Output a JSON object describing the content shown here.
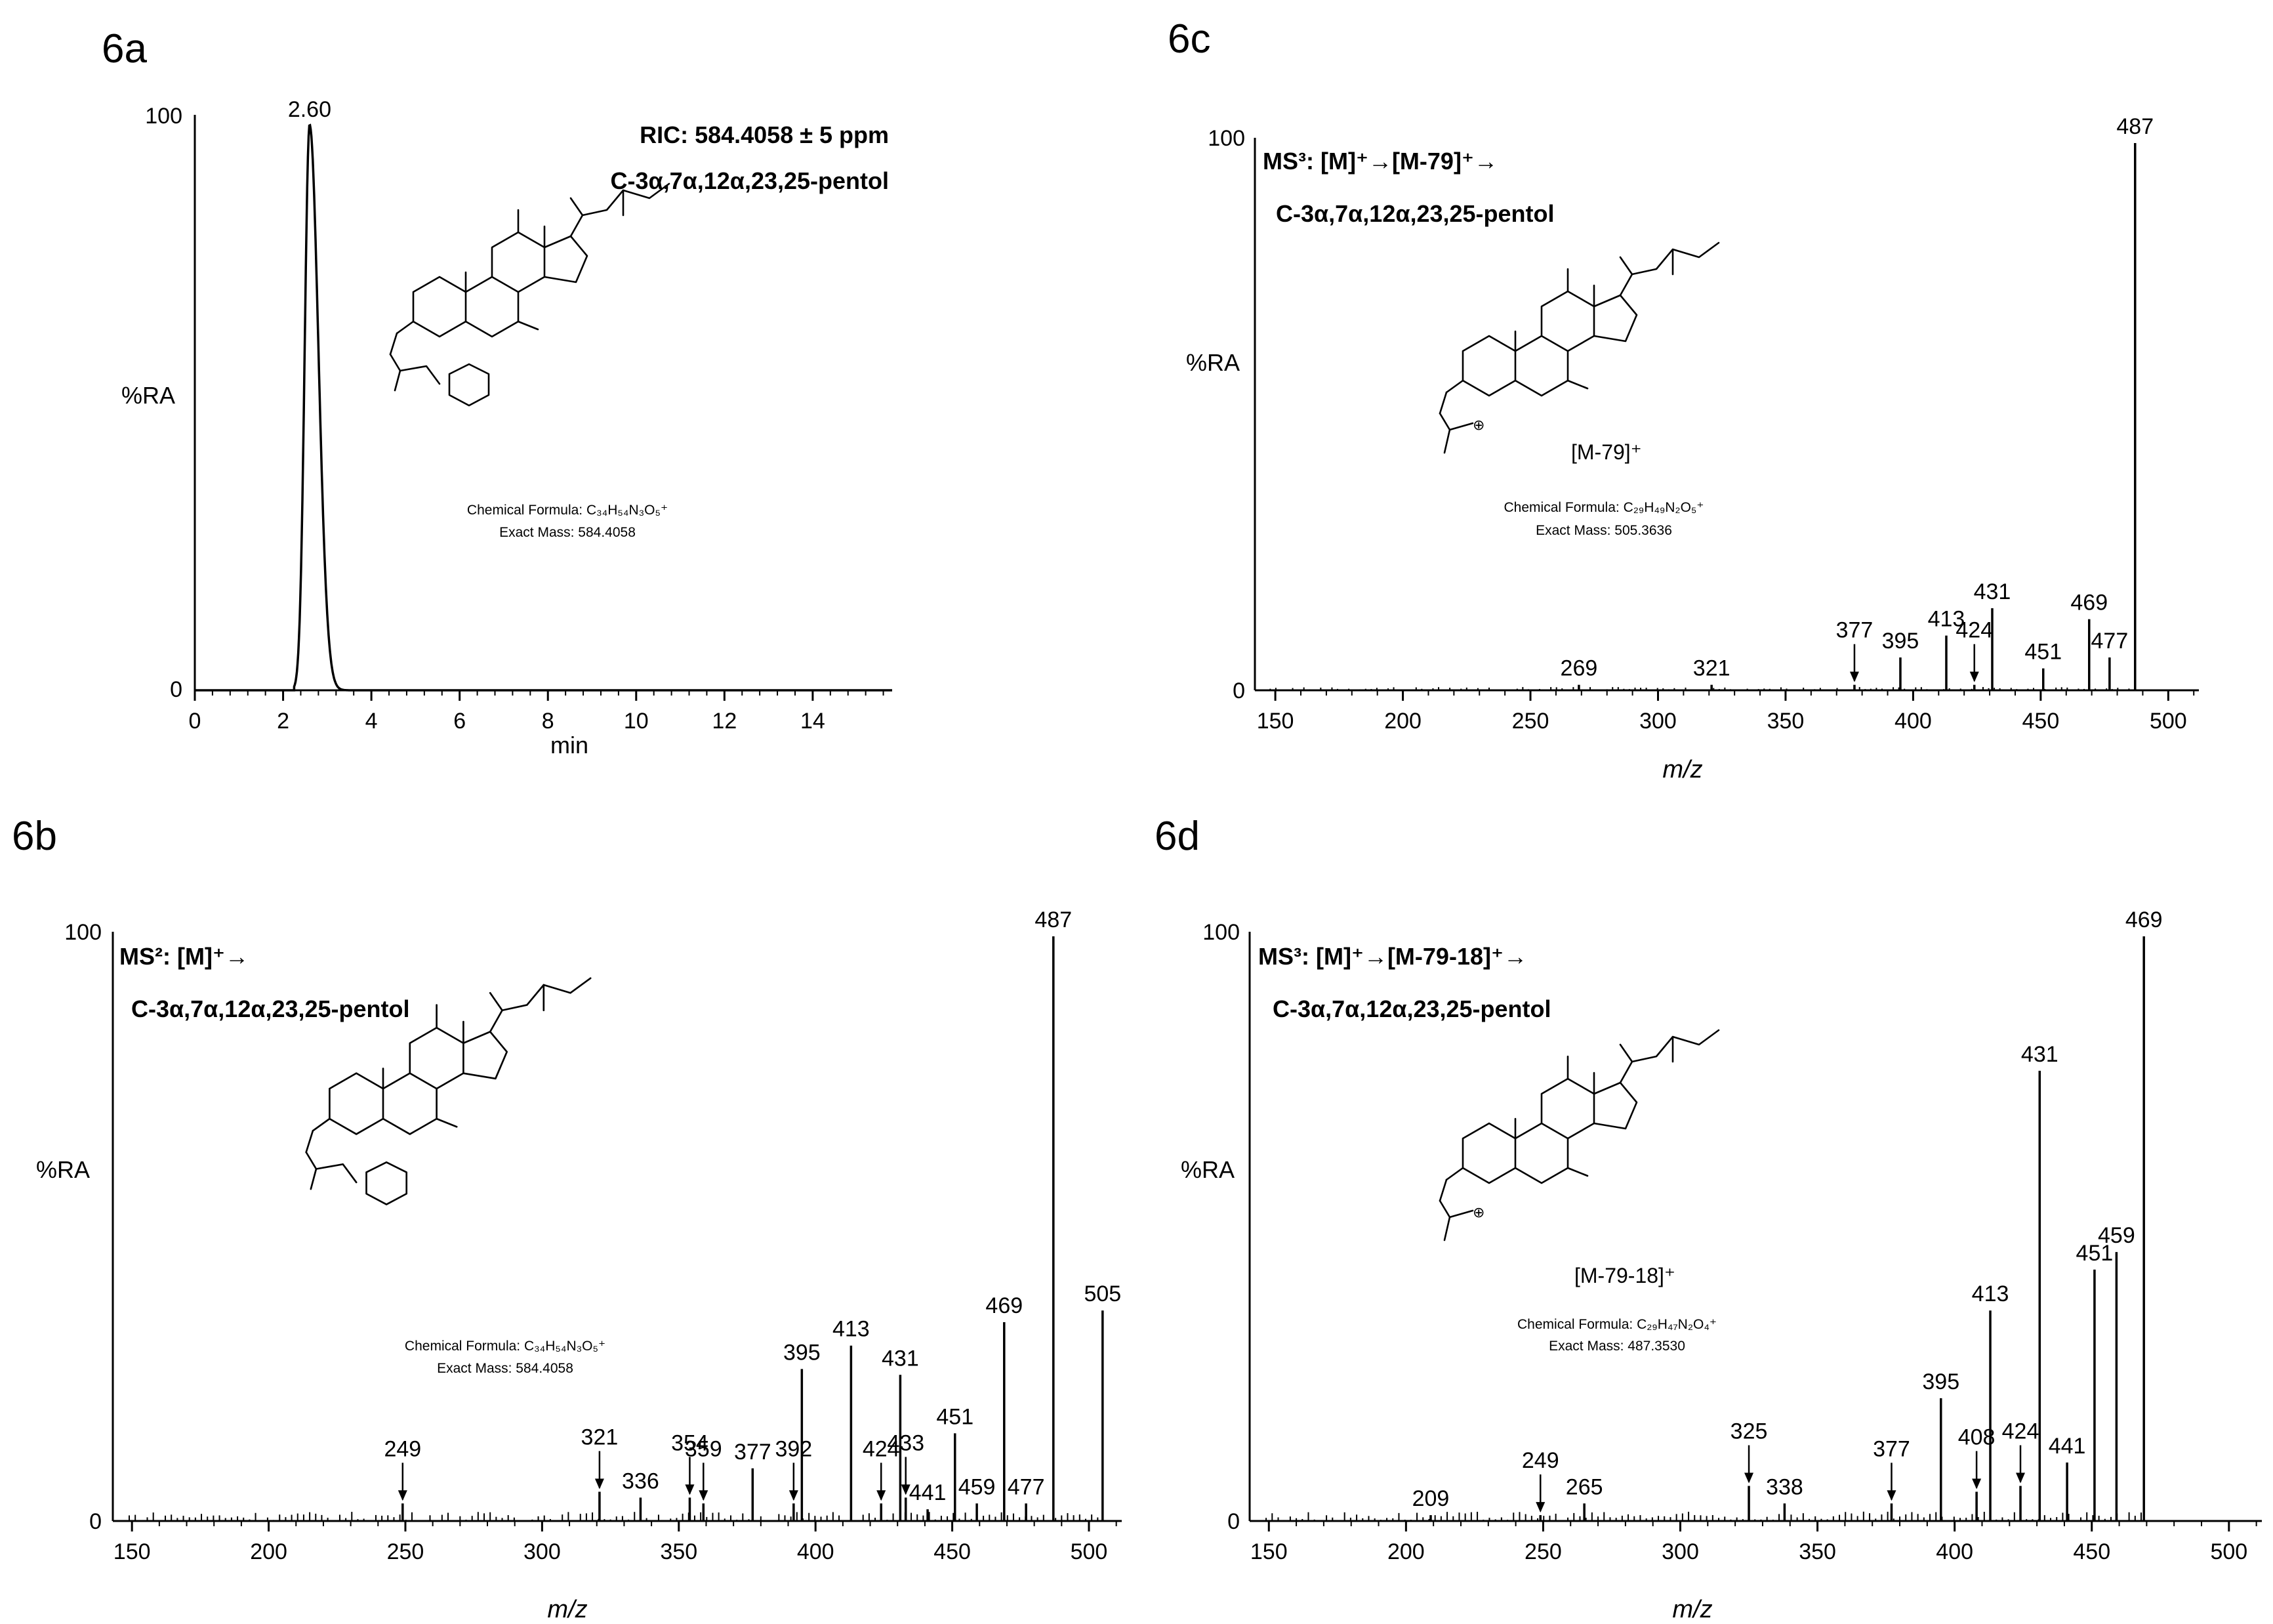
{
  "colors": {
    "ink": "#000000",
    "background": "#ffffff"
  },
  "chart_data": [
    {
      "id": "6a",
      "panel_label": "6a",
      "type": "line",
      "title": "RIC: 584.4058 ± 5 ppm",
      "subtitle": "C-3α,7α,12α,23,25-pentol",
      "xlabel": "min",
      "ylabel": "%RA",
      "xlim": [
        0,
        15.8
      ],
      "ylim": [
        0,
        100
      ],
      "x_ticks": [
        0,
        2,
        4,
        6,
        8,
        10,
        12,
        14
      ],
      "y_ticks": [
        0,
        100
      ],
      "peak_label": "2.60",
      "peak": {
        "apex": 2.6,
        "height": 100,
        "start": 2.25,
        "end": 3.5
      },
      "structure_caption": [
        "Chemical Formula: C₃₄H₅₄N₃O₅⁺",
        "Exact Mass: 584.4058"
      ],
      "grid": false
    },
    {
      "id": "6b",
      "panel_label": "6b",
      "type": "bar",
      "title": "MS²: [M]⁺→",
      "subtitle": "C-3α,7α,12α,23,25-pentol",
      "xlabel": "m/z",
      "ylabel": "%RA",
      "xlim": [
        143,
        512
      ],
      "ylim": [
        0,
        100
      ],
      "x_ticks": [
        150,
        200,
        250,
        300,
        350,
        400,
        450,
        500
      ],
      "y_ticks": [
        0,
        100
      ],
      "peaks": [
        {
          "mz": 249,
          "ri": 3,
          "label": "249",
          "arrow": true
        },
        {
          "mz": 321,
          "ri": 5,
          "label": "321",
          "arrow": true
        },
        {
          "mz": 336,
          "ri": 4,
          "label": "336"
        },
        {
          "mz": 354,
          "ri": 4,
          "label": "354",
          "arrow": true
        },
        {
          "mz": 359,
          "ri": 3,
          "label": "359",
          "arrow": true
        },
        {
          "mz": 377,
          "ri": 9,
          "label": "377"
        },
        {
          "mz": 392,
          "ri": 3,
          "label": "392",
          "arrow": true
        },
        {
          "mz": 395,
          "ri": 26,
          "label": "395"
        },
        {
          "mz": 413,
          "ri": 30,
          "label": "413"
        },
        {
          "mz": 424,
          "ri": 3,
          "label": "424",
          "arrow": true
        },
        {
          "mz": 431,
          "ri": 25,
          "label": "431"
        },
        {
          "mz": 433,
          "ri": 4,
          "label": "433",
          "arrow": true
        },
        {
          "mz": 441,
          "ri": 2,
          "label": "441"
        },
        {
          "mz": 451,
          "ri": 15,
          "label": "451"
        },
        {
          "mz": 459,
          "ri": 3,
          "label": "459"
        },
        {
          "mz": 469,
          "ri": 34,
          "label": "469"
        },
        {
          "mz": 477,
          "ri": 3,
          "label": "477"
        },
        {
          "mz": 487,
          "ri": 100,
          "label": "487"
        },
        {
          "mz": 505,
          "ri": 36,
          "label": "505"
        }
      ],
      "structure_caption": [
        "Chemical Formula: C₃₄H₅₄N₃O₅⁺",
        "Exact Mass: 584.4058"
      ],
      "grid": false
    },
    {
      "id": "6c",
      "panel_label": "6c",
      "type": "bar",
      "title": "MS³: [M]⁺→[M-79]⁺→",
      "subtitle": "C-3α,7α,12α,23,25-pentol",
      "xlabel": "m/z",
      "ylabel": "%RA",
      "xlim": [
        142,
        512
      ],
      "ylim": [
        0,
        100
      ],
      "x_ticks": [
        150,
        200,
        250,
        300,
        350,
        400,
        450,
        500
      ],
      "y_ticks": [
        0,
        100
      ],
      "ion_label": "[M-79]⁺",
      "peaks": [
        {
          "mz": 269,
          "ri": 1,
          "label": "269"
        },
        {
          "mz": 321,
          "ri": 1,
          "label": "321"
        },
        {
          "mz": 377,
          "ri": 1,
          "label": "377",
          "arrow": true
        },
        {
          "mz": 395,
          "ri": 6,
          "label": "395"
        },
        {
          "mz": 413,
          "ri": 10,
          "label": "413"
        },
        {
          "mz": 424,
          "ri": 1,
          "label": "424",
          "arrow": true
        },
        {
          "mz": 431,
          "ri": 15,
          "label": "431"
        },
        {
          "mz": 451,
          "ri": 4,
          "label": "451"
        },
        {
          "mz": 469,
          "ri": 13,
          "label": "469"
        },
        {
          "mz": 477,
          "ri": 6,
          "label": "477"
        },
        {
          "mz": 487,
          "ri": 100,
          "label": "487"
        }
      ],
      "structure_caption": [
        "Chemical Formula: C₂₉H₄₉N₂O₅⁺",
        "Exact Mass: 505.3636"
      ],
      "grid": false
    },
    {
      "id": "6d",
      "panel_label": "6d",
      "type": "bar",
      "title": "MS³: [M]⁺→[M-79-18]⁺→",
      "subtitle": "C-3α,7α,12α,23,25-pentol",
      "xlabel": "m/z",
      "ylabel": "%RA",
      "xlim": [
        143,
        512
      ],
      "ylim": [
        0,
        100
      ],
      "x_ticks": [
        150,
        200,
        250,
        300,
        350,
        400,
        450,
        500
      ],
      "y_ticks": [
        0,
        100
      ],
      "ion_label": "[M-79-18]⁺",
      "peaks": [
        {
          "mz": 209,
          "ri": 1,
          "label": "209"
        },
        {
          "mz": 249,
          "ri": 1,
          "label": "249",
          "arrow": true
        },
        {
          "mz": 265,
          "ri": 3,
          "label": "265"
        },
        {
          "mz": 325,
          "ri": 6,
          "label": "325",
          "arrow": true
        },
        {
          "mz": 338,
          "ri": 3,
          "label": "338"
        },
        {
          "mz": 377,
          "ri": 3,
          "label": "377",
          "arrow": true
        },
        {
          "mz": 395,
          "ri": 21,
          "label": "395"
        },
        {
          "mz": 408,
          "ri": 5,
          "label": "408",
          "arrow": true
        },
        {
          "mz": 413,
          "ri": 36,
          "label": "413"
        },
        {
          "mz": 424,
          "ri": 6,
          "label": "424",
          "arrow": true
        },
        {
          "mz": 431,
          "ri": 77,
          "label": "431"
        },
        {
          "mz": 441,
          "ri": 10,
          "label": "441"
        },
        {
          "mz": 451,
          "ri": 43,
          "label": "451"
        },
        {
          "mz": 459,
          "ri": 46,
          "label": "459"
        },
        {
          "mz": 469,
          "ri": 100,
          "label": "469"
        }
      ],
      "structure_caption": [
        "Chemical Formula: C₂₉H₄₇N₂O₄⁺",
        "Exact Mass: 487.3530"
      ],
      "grid": false
    }
  ]
}
